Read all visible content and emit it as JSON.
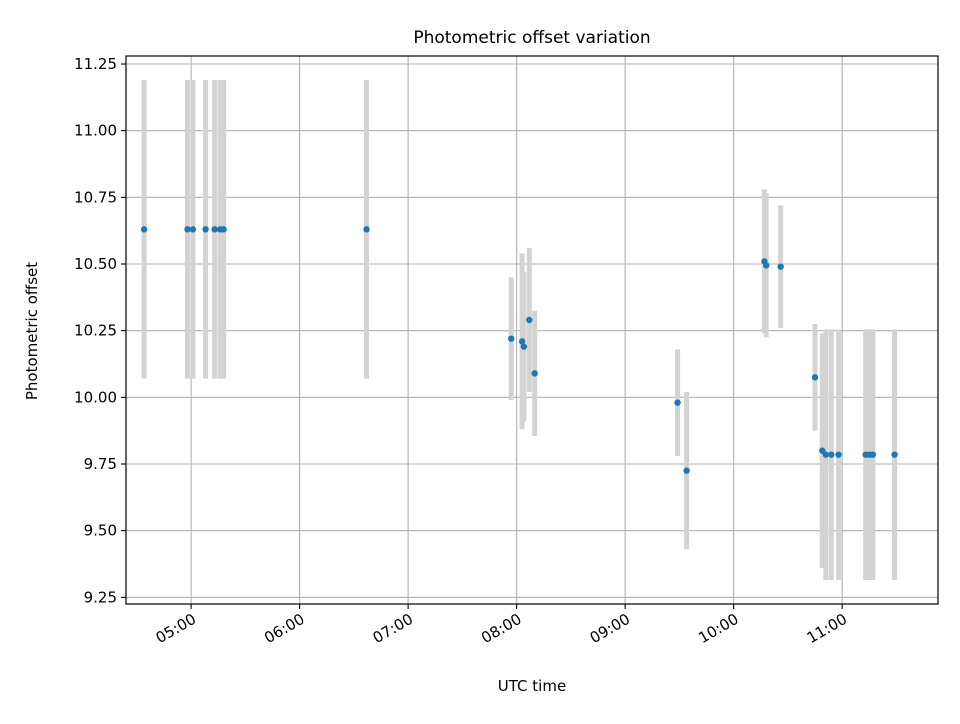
{
  "chart_data": {
    "type": "scatter",
    "title": "Photometric offset variation",
    "xlabel": "UTC time",
    "ylabel": "Photometric offset",
    "x_tick_labels": [
      "05:00",
      "06:00",
      "07:00",
      "08:00",
      "09:00",
      "10:00",
      "11:00"
    ],
    "y_tick_labels": [
      "9.25",
      "9.50",
      "9.75",
      "10.00",
      "10.25",
      "10.50",
      "10.75",
      "11.00",
      "11.25"
    ],
    "x_ticks_hours": [
      5,
      6,
      7,
      8,
      9,
      10,
      11
    ],
    "y_ticks": [
      9.25,
      9.5,
      9.75,
      10.0,
      10.25,
      10.5,
      10.75,
      11.0,
      11.25
    ],
    "xlim": [
      "04:24",
      "11:53"
    ],
    "ylim": [
      9.225,
      11.28
    ],
    "grid": true,
    "point_color": "#1f77b4",
    "errorbar_color": "#d3d3d3",
    "points": [
      {
        "t": "04:34",
        "y": 10.63,
        "err": 0.56
      },
      {
        "t": "04:58",
        "y": 10.63,
        "err": 0.56
      },
      {
        "t": "05:01",
        "y": 10.63,
        "err": 0.56
      },
      {
        "t": "05:08",
        "y": 10.63,
        "err": 0.56
      },
      {
        "t": "05:13",
        "y": 10.63,
        "err": 0.56
      },
      {
        "t": "05:16",
        "y": 10.63,
        "err": 0.56
      },
      {
        "t": "05:18",
        "y": 10.63,
        "err": 0.56
      },
      {
        "t": "06:37",
        "y": 10.63,
        "err": 0.56
      },
      {
        "t": "07:57",
        "y": 10.22,
        "err": 0.23
      },
      {
        "t": "08:03",
        "y": 10.21,
        "err": 0.33
      },
      {
        "t": "08:04",
        "y": 10.19,
        "err": 0.28
      },
      {
        "t": "08:07",
        "y": 10.29,
        "err": 0.27
      },
      {
        "t": "08:10",
        "y": 10.09,
        "err": 0.235
      },
      {
        "t": "09:29",
        "y": 9.98,
        "err": 0.2
      },
      {
        "t": "09:34",
        "y": 9.725,
        "err": 0.295
      },
      {
        "t": "10:17",
        "y": 10.51,
        "err": 0.27
      },
      {
        "t": "10:18",
        "y": 10.495,
        "err": 0.27
      },
      {
        "t": "10:26",
        "y": 10.49,
        "err": 0.23
      },
      {
        "t": "10:45",
        "y": 10.075,
        "err": 0.2
      },
      {
        "t": "10:49",
        "y": 9.8,
        "err": 0.44
      },
      {
        "t": "10:51",
        "y": 9.785,
        "err": 0.47
      },
      {
        "t": "10:54",
        "y": 9.785,
        "err": 0.47
      },
      {
        "t": "10:58",
        "y": 9.785,
        "err": 0.47
      },
      {
        "t": "11:13",
        "y": 9.785,
        "err": 0.47
      },
      {
        "t": "11:15",
        "y": 9.785,
        "err": 0.47
      },
      {
        "t": "11:17",
        "y": 9.785,
        "err": 0.47
      },
      {
        "t": "11:29",
        "y": 9.785,
        "err": 0.47
      }
    ]
  }
}
